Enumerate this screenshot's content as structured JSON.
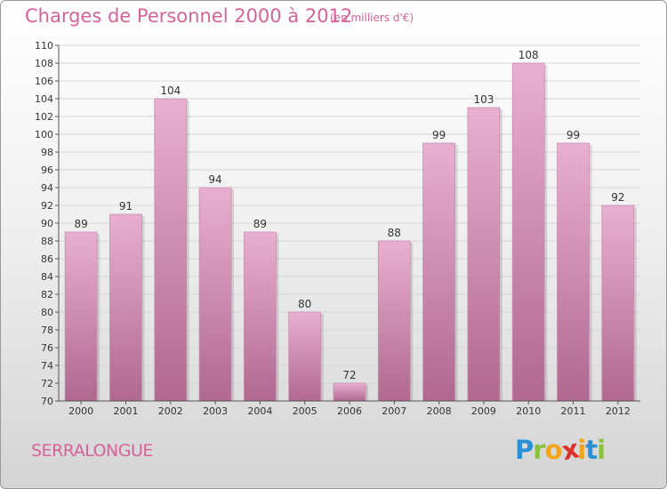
{
  "header": {
    "title": "Charges de Personnel 2000 à 2012",
    "subtitle": "(en milliers d'€)"
  },
  "footer": {
    "town": "SERRALONGUE",
    "logo": {
      "letters": [
        "P",
        "r",
        "o",
        "x",
        "i",
        "t",
        "i"
      ],
      "colors": [
        "#2b8fd6",
        "#8ac23f",
        "#f1a41e",
        "#e0302a",
        "#f1a41e",
        "#2b8fd6",
        "#8ac23f"
      ]
    }
  },
  "colors": {
    "bar_light": "#e9afd0",
    "bar_dark": "#b06890",
    "text_accent": "#d7629a"
  },
  "chart_data": {
    "type": "bar",
    "title": "Charges de Personnel 2000 à 2012",
    "subtitle": "(en milliers d'€)",
    "categories": [
      "2000",
      "2001",
      "2002",
      "2003",
      "2004",
      "2005",
      "2006",
      "2007",
      "2008",
      "2009",
      "2010",
      "2011",
      "2012"
    ],
    "values": [
      89,
      91,
      104,
      94,
      89,
      80,
      72,
      88,
      99,
      103,
      108,
      99,
      92
    ],
    "ylim": [
      70,
      110
    ],
    "yticks": [
      70,
      72,
      74,
      76,
      78,
      80,
      82,
      84,
      86,
      88,
      90,
      92,
      94,
      96,
      98,
      100,
      102,
      104,
      106,
      108,
      110
    ],
    "grid": true,
    "xlabel": "",
    "ylabel": ""
  }
}
